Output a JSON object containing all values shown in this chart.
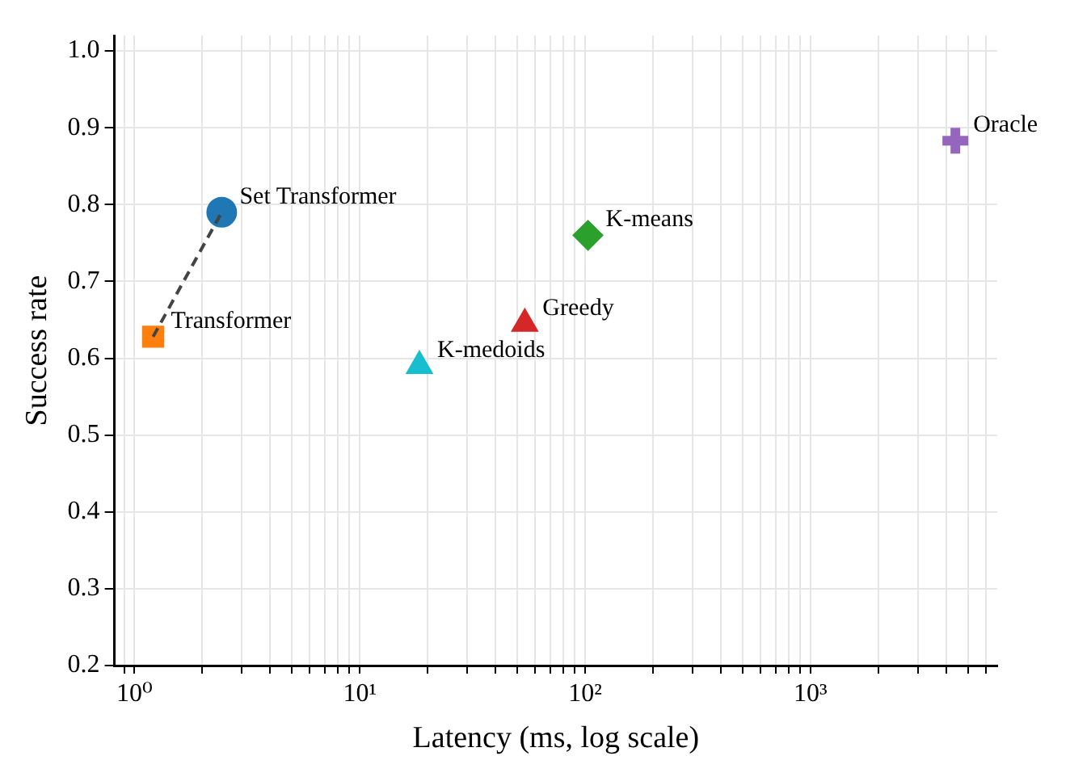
{
  "chart_data": {
    "type": "scatter",
    "xlabel": "Latency (ms, log scale)",
    "ylabel": "Success rate",
    "log": "x",
    "grid": true,
    "legend": false,
    "xlim": [
      0.815,
      6750
    ],
    "ylim": [
      0.2,
      1.02
    ],
    "xticks": [
      {
        "value": 0.9,
        "label": null
      },
      {
        "value": 1,
        "label": "10⁰"
      },
      {
        "value": 2,
        "label": null
      },
      {
        "value": 3,
        "label": null
      },
      {
        "value": 4,
        "label": null
      },
      {
        "value": 5,
        "label": null
      },
      {
        "value": 6,
        "label": null
      },
      {
        "value": 7,
        "label": null
      },
      {
        "value": 8,
        "label": null
      },
      {
        "value": 9,
        "label": null
      },
      {
        "value": 10,
        "label": "10¹"
      },
      {
        "value": 20,
        "label": null
      },
      {
        "value": 30,
        "label": null
      },
      {
        "value": 40,
        "label": null
      },
      {
        "value": 50,
        "label": null
      },
      {
        "value": 60,
        "label": null
      },
      {
        "value": 70,
        "label": null
      },
      {
        "value": 80,
        "label": null
      },
      {
        "value": 90,
        "label": null
      },
      {
        "value": 100,
        "label": "10²"
      },
      {
        "value": 200,
        "label": null
      },
      {
        "value": 300,
        "label": null
      },
      {
        "value": 400,
        "label": null
      },
      {
        "value": 500,
        "label": null
      },
      {
        "value": 600,
        "label": null
      },
      {
        "value": 700,
        "label": null
      },
      {
        "value": 800,
        "label": null
      },
      {
        "value": 900,
        "label": null
      },
      {
        "value": 1000,
        "label": "10³"
      },
      {
        "value": 2000,
        "label": null
      },
      {
        "value": 3000,
        "label": null
      },
      {
        "value": 4000,
        "label": null
      },
      {
        "value": 5000,
        "label": null
      },
      {
        "value": 6000,
        "label": null
      }
    ],
    "yticks": [
      {
        "value": 0.2,
        "label": "0.2"
      },
      {
        "value": 0.3,
        "label": "0.3"
      },
      {
        "value": 0.4,
        "label": "0.4"
      },
      {
        "value": 0.5,
        "label": "0.5"
      },
      {
        "value": 0.6,
        "label": "0.6"
      },
      {
        "value": 0.7,
        "label": "0.7"
      },
      {
        "value": 0.8,
        "label": "0.8"
      },
      {
        "value": 0.9,
        "label": "0.9"
      },
      {
        "value": 1,
        "label": "1.0"
      }
    ],
    "series": [
      {
        "type": "line",
        "color": "#444444",
        "line_style": "dashed",
        "marker": "none",
        "x": [
          1.21,
          2.44
        ],
        "values": [
          0.628,
          0.79
        ]
      },
      {
        "name": "Set Transformer",
        "color": "#1f77b4",
        "marker": "circle",
        "x": [
          2.44
        ],
        "values": [
          0.79
        ]
      },
      {
        "name": "Transformer",
        "color": "#ff7f0e",
        "marker": "square",
        "x": [
          1.21
        ],
        "values": [
          0.628
        ]
      },
      {
        "name": "K-means",
        "color": "#2ca02c",
        "marker": "diamond",
        "x": [
          103
        ],
        "values": [
          0.76
        ]
      },
      {
        "name": "Greedy",
        "color": "#d62728",
        "marker": "triangle",
        "x": [
          54
        ],
        "values": [
          0.645
        ]
      },
      {
        "name": "K-medoids",
        "color": "#17becf",
        "marker": "triangle",
        "x": [
          18.4
        ],
        "values": [
          0.59
        ]
      },
      {
        "name": "Oracle",
        "color": "#9467bd",
        "marker": "cross",
        "x": [
          4400
        ],
        "values": [
          0.883
        ]
      }
    ]
  }
}
